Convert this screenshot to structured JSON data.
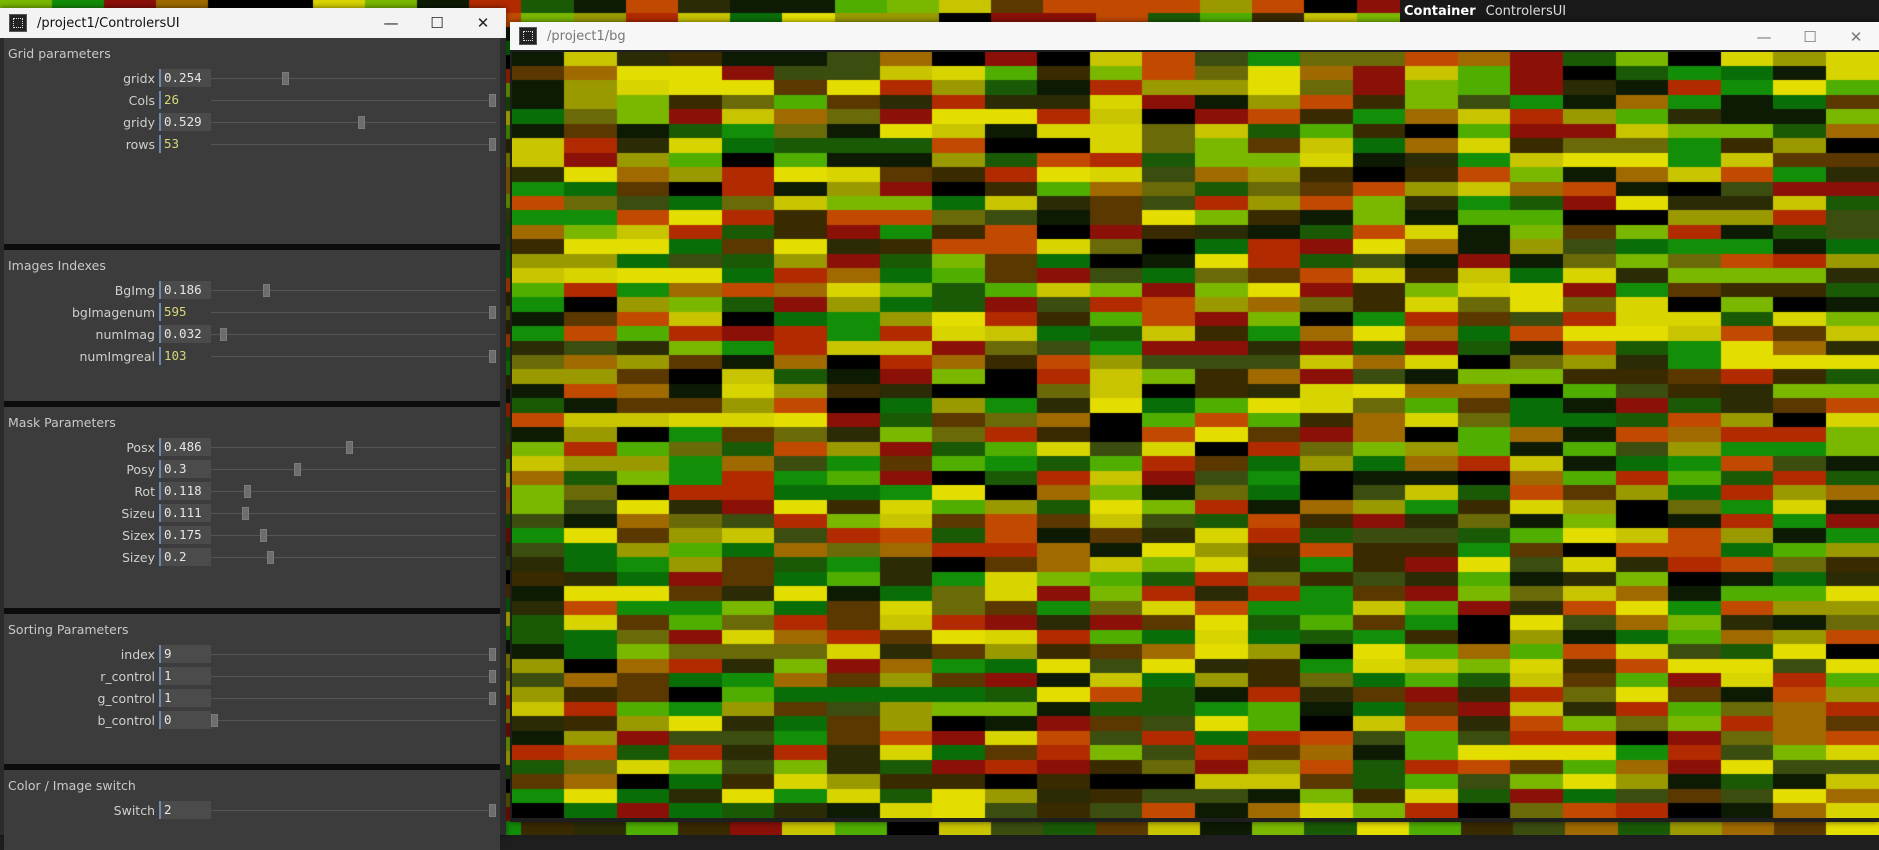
{
  "container_bar": {
    "label": "Container",
    "value": "ControlersUI"
  },
  "left_window": {
    "title": "/project1/ControlersUI",
    "controls": {
      "minimize": "—",
      "maximize": "☐",
      "close": "✕"
    },
    "sections": [
      {
        "title": "Grid parameters",
        "params": [
          {
            "label": "gridx",
            "value": "0.254",
            "type": "float",
            "level": 0.254
          },
          {
            "label": "Cols",
            "value": "26",
            "type": "int",
            "level": 1.0
          },
          {
            "label": "gridy",
            "value": "0.529",
            "type": "float",
            "level": 0.529
          },
          {
            "label": "rows",
            "value": "53",
            "type": "int",
            "level": 1.0
          }
        ]
      },
      {
        "title": "Images Indexes",
        "params": [
          {
            "label": "BgImg",
            "value": "0.186",
            "type": "float",
            "level": 0.186
          },
          {
            "label": "bgImagenum",
            "value": "595",
            "type": "int",
            "level": 1.0
          },
          {
            "label": "numImag",
            "value": "0.032",
            "type": "float",
            "level": 0.032
          },
          {
            "label": "numImgreal",
            "value": "103",
            "type": "int",
            "level": 1.0
          }
        ]
      },
      {
        "title": "Mask Parameters",
        "params": [
          {
            "label": "Posx",
            "value": "0.486",
            "type": "float",
            "level": 0.486
          },
          {
            "label": "Posy",
            "value": "0.3",
            "type": "float",
            "level": 0.3
          },
          {
            "label": "Rot",
            "value": "0.118",
            "type": "float",
            "level": 0.118
          },
          {
            "label": "Sizeu",
            "value": "0.111",
            "type": "float",
            "level": 0.111
          },
          {
            "label": "Sizex",
            "value": "0.175",
            "type": "float",
            "level": 0.175
          },
          {
            "label": "Sizey",
            "value": "0.2",
            "type": "float",
            "level": 0.2
          }
        ]
      },
      {
        "title": "Sorting Parameters",
        "params": [
          {
            "label": "index",
            "value": "9",
            "type": "float",
            "level": 1.0
          },
          {
            "label": "r_control",
            "value": "1",
            "type": "float",
            "level": 1.0
          },
          {
            "label": "g_control",
            "value": "1",
            "type": "float",
            "level": 1.0
          },
          {
            "label": "b_control",
            "value": "0",
            "type": "float",
            "level": 0.0
          }
        ]
      },
      {
        "title": "Color / Image switch",
        "params": [
          {
            "label": "Switch",
            "value": "2",
            "type": "float",
            "level": 1.0
          }
        ]
      }
    ]
  },
  "right_window": {
    "title": "/project1/bg",
    "controls": {
      "minimize": "—",
      "maximize": "☐",
      "close": "✕"
    },
    "palette": [
      "#b22a00",
      "#0a6e08",
      "#1a5a06",
      "#3c4d10",
      "#6a6a08",
      "#9a9a00",
      "#c8c400",
      "#d8d400",
      "#e4de00",
      "#7ab800",
      "#4fae00",
      "#138e08",
      "#2b2b06",
      "#0d1a04",
      "#000000",
      "#c24a00",
      "#8a1008",
      "#a06a00",
      "#5a3800",
      "#3a2a00"
    ]
  }
}
